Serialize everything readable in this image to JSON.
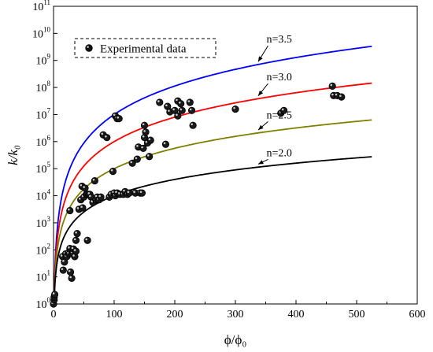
{
  "chart_data": {
    "type": "line",
    "xlabel": "ϕ/ϕ₀",
    "ylabel": "k/k₀",
    "xlim": [
      0,
      600
    ],
    "ylim_log10": [
      0,
      11
    ],
    "yscale": "log",
    "x_ticks": [
      "0",
      "100",
      "200",
      "300",
      "400",
      "500",
      "600"
    ],
    "y_ticks": [
      {
        "base": "10",
        "exp": "0"
      },
      {
        "base": "10",
        "exp": "1"
      },
      {
        "base": "10",
        "exp": "2"
      },
      {
        "base": "10",
        "exp": "3"
      },
      {
        "base": "10",
        "exp": "4"
      },
      {
        "base": "10",
        "exp": "5"
      },
      {
        "base": "10",
        "exp": "6"
      },
      {
        "base": "10",
        "exp": "7"
      },
      {
        "base": "10",
        "exp": "8"
      },
      {
        "base": "10",
        "exp": "9"
      },
      {
        "base": "10",
        "exp": "10"
      },
      {
        "base": "10",
        "exp": "11"
      }
    ],
    "grid": false,
    "legend": {
      "position": "top-left",
      "label": "Experimental data"
    },
    "series": [
      {
        "name": "n=3.5",
        "color": "#0000ff",
        "exponent": 3.5,
        "x_max": 525,
        "label_at": {
          "x": 372,
          "log10y": 9.6
        }
      },
      {
        "name": "n=3.0",
        "color": "#ff0000",
        "exponent": 3.0,
        "x_max": 525,
        "label_at": {
          "x": 372,
          "log10y": 8.2
        }
      },
      {
        "name": "n=2.5",
        "color": "#808000",
        "exponent": 2.5,
        "x_max": 525,
        "label_at": {
          "x": 372,
          "log10y": 6.8
        }
      },
      {
        "name": "n=2.0",
        "color": "#000000",
        "exponent": 2.0,
        "x_max": 525,
        "label_at": {
          "x": 372,
          "log10y": 5.4
        }
      }
    ],
    "scatter": {
      "name": "Experimental data",
      "points": [
        [
          0,
          0.0
        ],
        [
          1,
          0.15
        ],
        [
          1,
          0.25
        ],
        [
          2,
          0.35
        ],
        [
          15,
          1.75
        ],
        [
          16,
          1.25
        ],
        [
          18,
          1.55
        ],
        [
          20,
          1.85
        ],
        [
          22,
          1.75
        ],
        [
          24,
          1.88
        ],
        [
          26,
          1.85
        ],
        [
          27,
          2.05
        ],
        [
          28,
          1.18
        ],
        [
          30,
          1.85
        ],
        [
          30,
          0.95
        ],
        [
          32,
          1.88
        ],
        [
          33,
          2.03
        ],
        [
          35,
          1.75
        ],
        [
          37,
          2.35
        ],
        [
          39,
          2.6
        ],
        [
          37,
          1.95
        ],
        [
          27,
          3.45
        ],
        [
          42,
          3.5
        ],
        [
          45,
          3.85
        ],
        [
          47,
          4.35
        ],
        [
          48,
          3.55
        ],
        [
          50,
          3.95
        ],
        [
          52,
          4.28
        ],
        [
          54,
          4.05
        ],
        [
          56,
          4.05
        ],
        [
          56,
          2.35
        ],
        [
          58,
          4.05
        ],
        [
          60,
          4.05
        ],
        [
          62,
          3.95
        ],
        [
          65,
          3.75
        ],
        [
          68,
          4.55
        ],
        [
          70,
          3.85
        ],
        [
          72,
          3.95
        ],
        [
          75,
          3.85
        ],
        [
          78,
          3.95
        ],
        [
          82,
          6.25
        ],
        [
          88,
          6.15
        ],
        [
          92,
          3.95
        ],
        [
          95,
          4.05
        ],
        [
          98,
          4.9
        ],
        [
          100,
          4.1
        ],
        [
          102,
          4.0
        ],
        [
          105,
          4.1
        ],
        [
          110,
          4.05
        ],
        [
          115,
          4.05
        ],
        [
          118,
          4.15
        ],
        [
          122,
          4.05
        ],
        [
          125,
          4.1
        ],
        [
          130,
          5.2
        ],
        [
          135,
          4.1
        ],
        [
          138,
          5.35
        ],
        [
          140,
          5.8
        ],
        [
          143,
          4.1
        ],
        [
          146,
          4.1
        ],
        [
          150,
          6.6
        ],
        [
          150,
          6.15
        ],
        [
          152,
          6.35
        ],
        [
          155,
          5.95
        ],
        [
          158,
          5.45
        ],
        [
          160,
          6.05
        ],
        [
          102,
          6.95
        ],
        [
          105,
          6.85
        ],
        [
          108,
          6.85
        ],
        [
          148,
          5.75
        ],
        [
          175,
          7.45
        ],
        [
          185,
          5.9
        ],
        [
          188,
          7.3
        ],
        [
          192,
          7.1
        ],
        [
          200,
          7.15
        ],
        [
          205,
          7.5
        ],
        [
          210,
          7.4
        ],
        [
          212,
          7.15
        ],
        [
          225,
          7.45
        ],
        [
          228,
          7.15
        ],
        [
          230,
          6.6
        ],
        [
          205,
          6.95
        ],
        [
          300,
          7.2
        ],
        [
          375,
          7.05
        ],
        [
          380,
          7.15
        ],
        [
          460,
          8.05
        ],
        [
          462,
          7.7
        ],
        [
          468,
          7.7
        ],
        [
          475,
          7.65
        ]
      ]
    }
  }
}
